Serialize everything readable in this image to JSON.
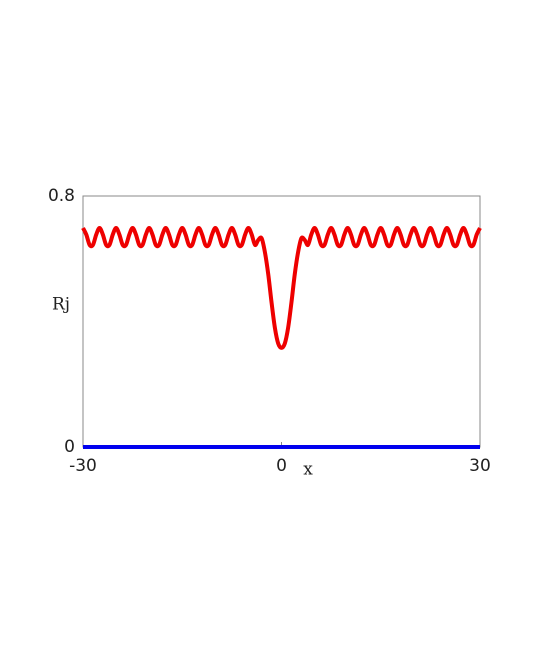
{
  "chart_data": {
    "type": "line",
    "xlabel": "x",
    "ylabel": "Rj",
    "xlim": [
      -30,
      30
    ],
    "ylim": [
      0,
      0.8
    ],
    "xticks": [
      -30,
      0,
      30
    ],
    "yticks": [
      0,
      0.8
    ],
    "series": [
      {
        "color": "#ee0000",
        "x": [
          -30,
          -29.5,
          -29,
          -28.5,
          -28,
          -27.5,
          -27,
          -26.5,
          -26,
          -25.5,
          -25,
          -24.5,
          -24,
          -23.5,
          -23,
          -22.5,
          -22,
          -21.5,
          -21,
          -20.5,
          -20,
          -19.5,
          -19,
          -18.5,
          -18,
          -17.5,
          -17,
          -16.5,
          -16,
          -15.5,
          -15,
          -14.5,
          -14,
          -13.5,
          -13,
          -12.5,
          -12,
          -11.5,
          -11,
          -10.5,
          -10,
          -9.5,
          -9,
          -8.5,
          -8,
          -7.5,
          -7,
          -6.5,
          -6,
          -5.5,
          -5,
          -4.5,
          -4,
          -3.5,
          -3,
          -2.5,
          -2,
          -1.5,
          -1,
          -0.5,
          0,
          0.5,
          1,
          1.5,
          2,
          2.5,
          3,
          3.5,
          4,
          4.5,
          5,
          5.5,
          6,
          6.5,
          7,
          7.5,
          8,
          8.5,
          9,
          9.5,
          10,
          10.5,
          11,
          11.5,
          12,
          12.5,
          13,
          13.5,
          14,
          14.5,
          15,
          15.5,
          16,
          16.5,
          17,
          17.5,
          18,
          18.5,
          19,
          19.5,
          20,
          20.5,
          21,
          21.5,
          22,
          22.5,
          23,
          23.5,
          24,
          24.5,
          25,
          25.5,
          26,
          26.5,
          27,
          27.5,
          28,
          28.5,
          29,
          29.5,
          30
        ],
        "values": [
          0.698,
          0.677,
          0.644,
          0.644,
          0.677,
          0.698,
          0.677,
          0.644,
          0.644,
          0.677,
          0.698,
          0.677,
          0.644,
          0.644,
          0.677,
          0.698,
          0.677,
          0.644,
          0.644,
          0.677,
          0.698,
          0.677,
          0.644,
          0.644,
          0.677,
          0.698,
          0.677,
          0.644,
          0.644,
          0.677,
          0.698,
          0.677,
          0.644,
          0.644,
          0.677,
          0.698,
          0.677,
          0.644,
          0.644,
          0.677,
          0.698,
          0.677,
          0.644,
          0.644,
          0.677,
          0.698,
          0.677,
          0.644,
          0.644,
          0.677,
          0.698,
          0.677,
          0.644,
          0.66,
          0.665,
          0.62,
          0.55,
          0.46,
          0.38,
          0.33,
          0.316,
          0.33,
          0.38,
          0.46,
          0.55,
          0.62,
          0.665,
          0.66,
          0.644,
          0.677,
          0.698,
          0.677,
          0.644,
          0.644,
          0.677,
          0.698,
          0.677,
          0.644,
          0.644,
          0.677,
          0.698,
          0.677,
          0.644,
          0.644,
          0.677,
          0.698,
          0.677,
          0.644,
          0.644,
          0.677,
          0.698,
          0.677,
          0.644,
          0.644,
          0.677,
          0.698,
          0.677,
          0.644,
          0.644,
          0.677,
          0.698,
          0.677,
          0.644,
          0.644,
          0.677,
          0.698,
          0.677,
          0.644,
          0.644,
          0.677,
          0.698,
          0.677,
          0.644,
          0.644,
          0.677,
          0.698,
          0.677,
          0.644,
          0.644,
          0.677,
          0.698
        ]
      },
      {
        "color": "#0000ee",
        "x": [
          -30,
          30
        ],
        "values": [
          0,
          0
        ]
      }
    ]
  }
}
